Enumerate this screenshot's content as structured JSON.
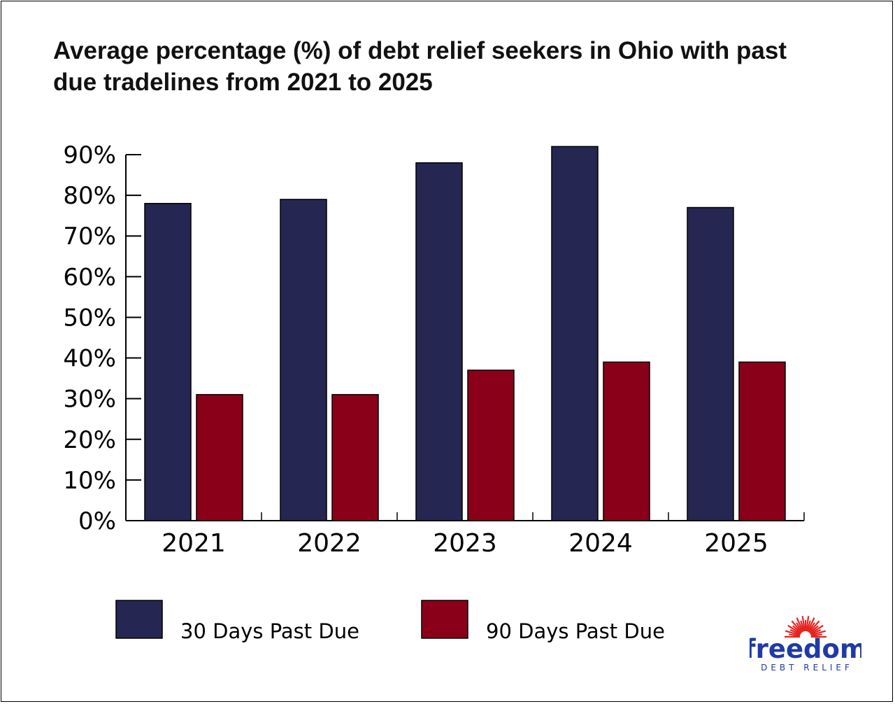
{
  "chart_data": {
    "type": "bar",
    "title": "Average percentage (%) of debt relief seekers in Ohio with past due tradelines from 2021 to 2025",
    "categories": [
      "2021",
      "2022",
      "2023",
      "2024",
      "2025"
    ],
    "series": [
      {
        "name": "30 Days Past Due",
        "color": "#262652",
        "values": [
          78,
          79,
          88,
          92,
          77
        ]
      },
      {
        "name": "90 Days Past Due",
        "color": "#8b0019",
        "values": [
          31,
          31,
          37,
          39,
          39
        ]
      }
    ],
    "ylim": [
      0,
      90
    ],
    "yticks": [
      0,
      10,
      20,
      30,
      40,
      50,
      60,
      70,
      80,
      90
    ],
    "ytick_labels": [
      "0%",
      "10%",
      "20%",
      "30%",
      "40%",
      "50%",
      "60%",
      "70%",
      "80%",
      "90%"
    ],
    "xlabel": "",
    "ylabel": "",
    "grid": false,
    "legend_position": "bottom"
  },
  "logo": {
    "word": "freedom",
    "sub": "DEBT RELIEF",
    "accent_color": "#e52421",
    "brand_color": "#1f3aa8"
  }
}
